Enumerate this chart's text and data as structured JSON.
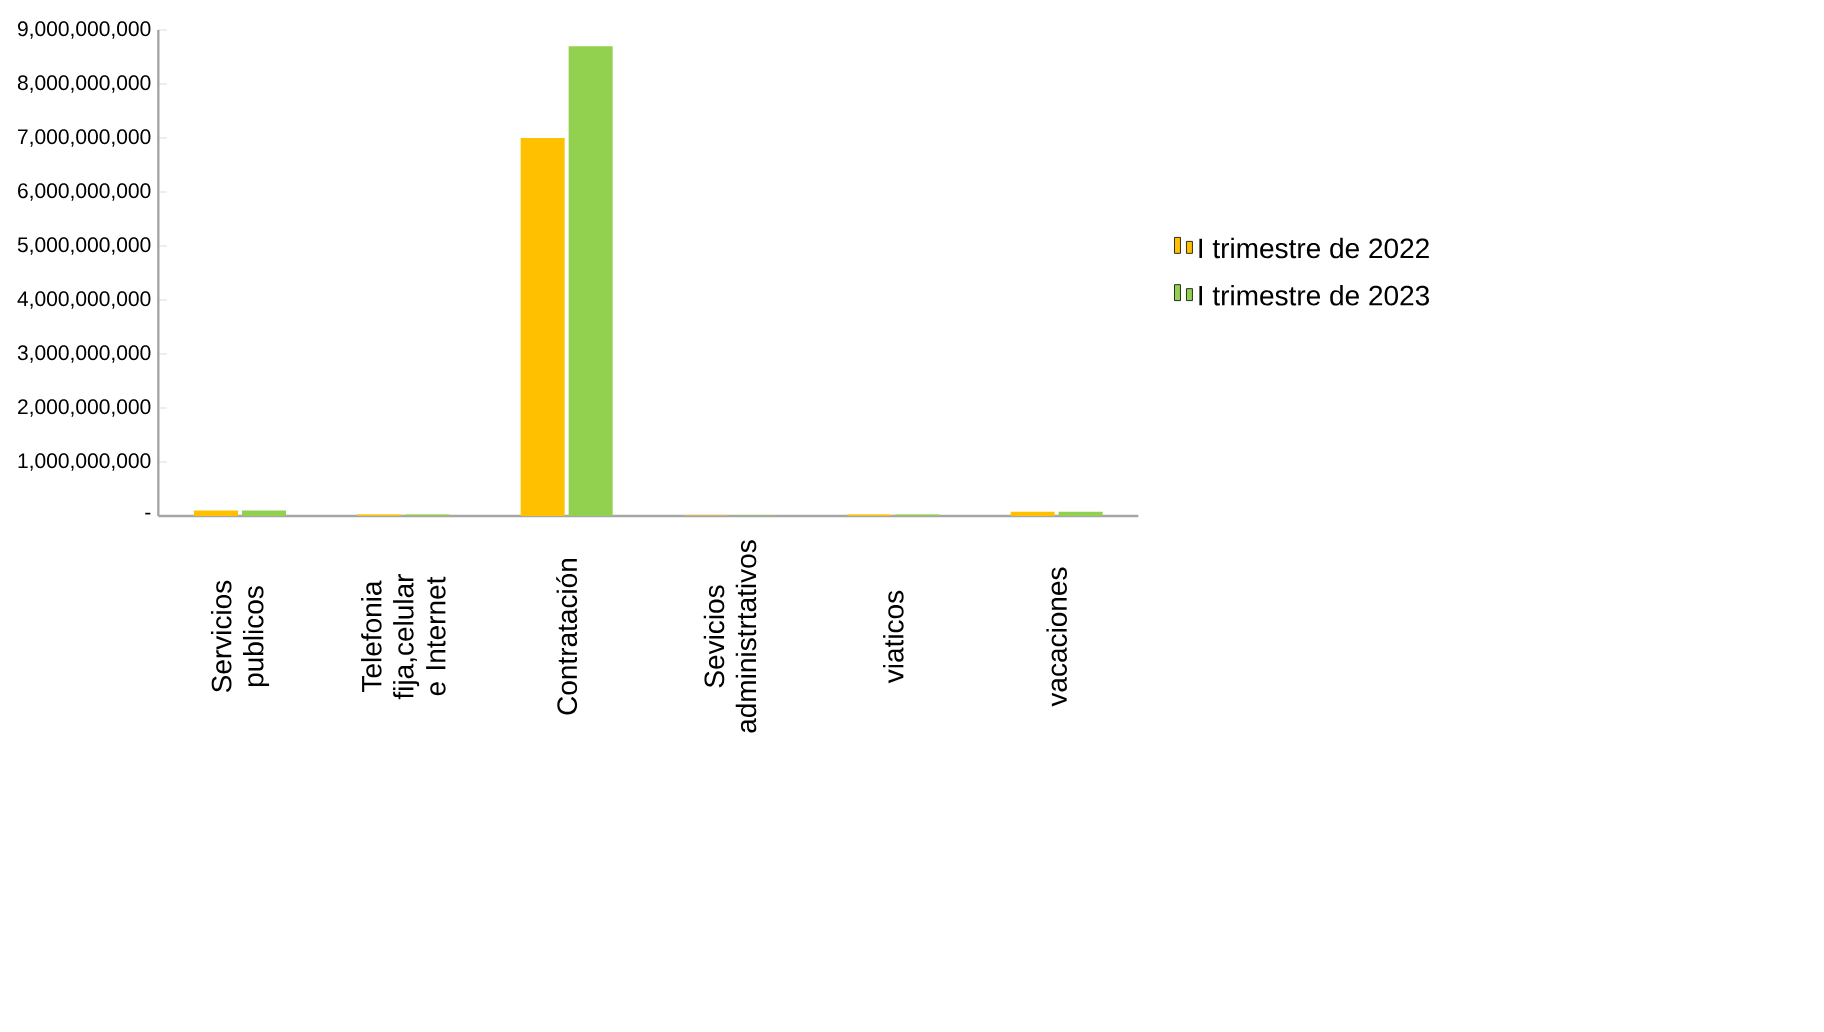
{
  "chart_data": {
    "type": "bar",
    "categories": [
      "Servicios publicos",
      "Telefonia fija,celular e Internet",
      "Contratación",
      "Sevicios administrtativos",
      "viaticos",
      "vacaciones"
    ],
    "series": [
      {
        "name": "I trimestre de 2022",
        "color": "#ffc000",
        "values": [
          100000000,
          30000000,
          7000000000,
          10000000,
          30000000,
          80000000
        ]
      },
      {
        "name": "I trimestre de 2023",
        "color": "#92d050",
        "values": [
          100000000,
          30000000,
          8700000000,
          10000000,
          30000000,
          80000000
        ]
      }
    ],
    "ylim": [
      0,
      9000000000
    ],
    "yticks": [
      {
        "value": 0,
        "label": "-"
      },
      {
        "value": 1000000000,
        "label": "1,000,000,000"
      },
      {
        "value": 2000000000,
        "label": "2,000,000,000"
      },
      {
        "value": 3000000000,
        "label": "3,000,000,000"
      },
      {
        "value": 4000000000,
        "label": "4,000,000,000"
      },
      {
        "value": 5000000000,
        "label": "5,000,000,000"
      },
      {
        "value": 6000000000,
        "label": "6,000,000,000"
      },
      {
        "value": 7000000000,
        "label": "7,000,000,000"
      },
      {
        "value": 8000000000,
        "label": "8,000,000,000"
      },
      {
        "value": 9000000000,
        "label": "9,000,000,000"
      }
    ],
    "legend": "right",
    "grid": false
  }
}
